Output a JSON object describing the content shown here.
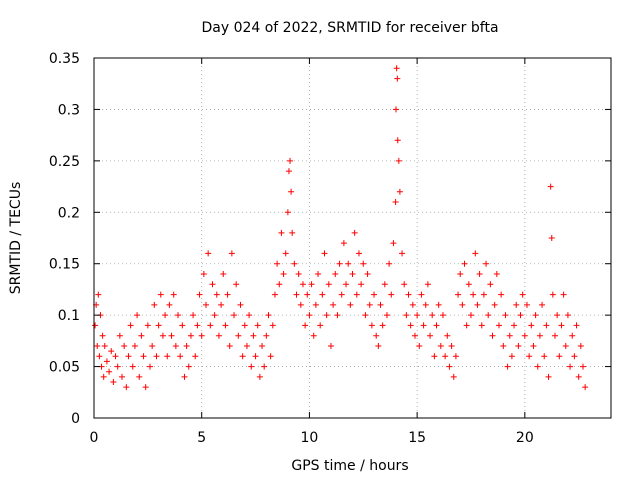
{
  "chart_data": {
    "type": "scatter",
    "title": "Day 024 of 2022, SRMTID for receiver bfta",
    "xlabel": "GPS time / hours",
    "ylabel": "SRMTID / TECUs",
    "xlim": [
      0,
      24
    ],
    "ylim": [
      0,
      0.35
    ],
    "x_ticks": [
      0,
      5,
      10,
      15,
      20
    ],
    "x_tick_labels": [
      "0",
      "5",
      "10",
      "15",
      "20"
    ],
    "y_ticks": [
      0,
      0.05,
      0.1,
      0.15,
      0.2,
      0.25,
      0.3,
      0.35
    ],
    "y_tick_labels": [
      "0",
      "0.05",
      "0.1",
      "0.15",
      "0.2",
      "0.25",
      "0.3",
      "0.35"
    ],
    "grid": true,
    "marker": "plus",
    "color": "#ff0000",
    "series": [
      {
        "name": "SRMTID",
        "points": [
          [
            0.05,
            0.09
          ],
          [
            0.1,
            0.11
          ],
          [
            0.15,
            0.07
          ],
          [
            0.2,
            0.12
          ],
          [
            0.25,
            0.06
          ],
          [
            0.3,
            0.1
          ],
          [
            0.35,
            0.05
          ],
          [
            0.4,
            0.08
          ],
          [
            0.45,
            0.04
          ],
          [
            0.5,
            0.07
          ],
          [
            0.6,
            0.055
          ],
          [
            0.7,
            0.045
          ],
          [
            0.8,
            0.065
          ],
          [
            0.9,
            0.035
          ],
          [
            1.0,
            0.06
          ],
          [
            1.1,
            0.05
          ],
          [
            1.2,
            0.08
          ],
          [
            1.3,
            0.04
          ],
          [
            1.4,
            0.07
          ],
          [
            1.5,
            0.03
          ],
          [
            1.6,
            0.06
          ],
          [
            1.7,
            0.09
          ],
          [
            1.8,
            0.05
          ],
          [
            1.9,
            0.07
          ],
          [
            2.0,
            0.1
          ],
          [
            2.1,
            0.04
          ],
          [
            2.2,
            0.08
          ],
          [
            2.3,
            0.06
          ],
          [
            2.4,
            0.03
          ],
          [
            2.5,
            0.09
          ],
          [
            2.6,
            0.05
          ],
          [
            2.7,
            0.07
          ],
          [
            2.8,
            0.11
          ],
          [
            2.9,
            0.06
          ],
          [
            3.0,
            0.09
          ],
          [
            3.1,
            0.12
          ],
          [
            3.2,
            0.08
          ],
          [
            3.3,
            0.1
          ],
          [
            3.4,
            0.06
          ],
          [
            3.5,
            0.11
          ],
          [
            3.6,
            0.08
          ],
          [
            3.7,
            0.12
          ],
          [
            3.8,
            0.07
          ],
          [
            3.9,
            0.1
          ],
          [
            4.0,
            0.06
          ],
          [
            4.1,
            0.09
          ],
          [
            4.2,
            0.04
          ],
          [
            4.3,
            0.07
          ],
          [
            4.4,
            0.05
          ],
          [
            4.5,
            0.08
          ],
          [
            4.6,
            0.1
          ],
          [
            4.7,
            0.06
          ],
          [
            4.8,
            0.09
          ],
          [
            4.9,
            0.12
          ],
          [
            5.0,
            0.08
          ],
          [
            5.1,
            0.14
          ],
          [
            5.2,
            0.11
          ],
          [
            5.3,
            0.16
          ],
          [
            5.4,
            0.09
          ],
          [
            5.5,
            0.13
          ],
          [
            5.6,
            0.1
          ],
          [
            5.7,
            0.12
          ],
          [
            5.8,
            0.08
          ],
          [
            5.9,
            0.11
          ],
          [
            6.0,
            0.14
          ],
          [
            6.1,
            0.09
          ],
          [
            6.2,
            0.12
          ],
          [
            6.3,
            0.07
          ],
          [
            6.4,
            0.16
          ],
          [
            6.5,
            0.1
          ],
          [
            6.6,
            0.13
          ],
          [
            6.7,
            0.08
          ],
          [
            6.8,
            0.11
          ],
          [
            6.9,
            0.06
          ],
          [
            7.0,
            0.09
          ],
          [
            7.1,
            0.07
          ],
          [
            7.2,
            0.1
          ],
          [
            7.3,
            0.05
          ],
          [
            7.4,
            0.08
          ],
          [
            7.5,
            0.06
          ],
          [
            7.6,
            0.09
          ],
          [
            7.7,
            0.04
          ],
          [
            7.8,
            0.07
          ],
          [
            7.9,
            0.05
          ],
          [
            8.0,
            0.08
          ],
          [
            8.1,
            0.1
          ],
          [
            8.2,
            0.06
          ],
          [
            8.3,
            0.09
          ],
          [
            8.4,
            0.12
          ],
          [
            8.5,
            0.15
          ],
          [
            8.6,
            0.13
          ],
          [
            8.7,
            0.18
          ],
          [
            8.8,
            0.14
          ],
          [
            8.9,
            0.16
          ],
          [
            9.0,
            0.2
          ],
          [
            9.05,
            0.24
          ],
          [
            9.1,
            0.25
          ],
          [
            9.15,
            0.22
          ],
          [
            9.2,
            0.18
          ],
          [
            9.3,
            0.15
          ],
          [
            9.4,
            0.12
          ],
          [
            9.5,
            0.14
          ],
          [
            9.6,
            0.11
          ],
          [
            9.7,
            0.13
          ],
          [
            9.8,
            0.09
          ],
          [
            9.9,
            0.12
          ],
          [
            10.0,
            0.1
          ],
          [
            10.1,
            0.13
          ],
          [
            10.2,
            0.08
          ],
          [
            10.3,
            0.11
          ],
          [
            10.4,
            0.14
          ],
          [
            10.5,
            0.09
          ],
          [
            10.6,
            0.12
          ],
          [
            10.7,
            0.16
          ],
          [
            10.8,
            0.1
          ],
          [
            10.9,
            0.13
          ],
          [
            11.0,
            0.07
          ],
          [
            11.1,
            0.11
          ],
          [
            11.2,
            0.14
          ],
          [
            11.3,
            0.1
          ],
          [
            11.4,
            0.15
          ],
          [
            11.5,
            0.12
          ],
          [
            11.6,
            0.17
          ],
          [
            11.7,
            0.13
          ],
          [
            11.8,
            0.15
          ],
          [
            11.9,
            0.11
          ],
          [
            12.0,
            0.14
          ],
          [
            12.1,
            0.18
          ],
          [
            12.2,
            0.12
          ],
          [
            12.3,
            0.16
          ],
          [
            12.4,
            0.13
          ],
          [
            12.5,
            0.15
          ],
          [
            12.6,
            0.1
          ],
          [
            12.7,
            0.14
          ],
          [
            12.8,
            0.11
          ],
          [
            12.9,
            0.09
          ],
          [
            13.0,
            0.12
          ],
          [
            13.1,
            0.08
          ],
          [
            13.2,
            0.07
          ],
          [
            13.3,
            0.11
          ],
          [
            13.4,
            0.09
          ],
          [
            13.5,
            0.13
          ],
          [
            13.6,
            0.1
          ],
          [
            13.7,
            0.15
          ],
          [
            13.8,
            0.12
          ],
          [
            13.9,
            0.17
          ],
          [
            14.0,
            0.21
          ],
          [
            14.02,
            0.3
          ],
          [
            14.05,
            0.34
          ],
          [
            14.08,
            0.33
          ],
          [
            14.1,
            0.27
          ],
          [
            14.15,
            0.25
          ],
          [
            14.2,
            0.22
          ],
          [
            14.3,
            0.16
          ],
          [
            14.4,
            0.13
          ],
          [
            14.5,
            0.1
          ],
          [
            14.6,
            0.12
          ],
          [
            14.7,
            0.09
          ],
          [
            14.8,
            0.11
          ],
          [
            14.9,
            0.08
          ],
          [
            15.0,
            0.1
          ],
          [
            15.1,
            0.07
          ],
          [
            15.2,
            0.12
          ],
          [
            15.3,
            0.09
          ],
          [
            15.4,
            0.11
          ],
          [
            15.5,
            0.13
          ],
          [
            15.6,
            0.08
          ],
          [
            15.7,
            0.1
          ],
          [
            15.8,
            0.06
          ],
          [
            15.9,
            0.09
          ],
          [
            16.0,
            0.11
          ],
          [
            16.1,
            0.07
          ],
          [
            16.2,
            0.1
          ],
          [
            16.3,
            0.06
          ],
          [
            16.4,
            0.08
          ],
          [
            16.5,
            0.05
          ],
          [
            16.6,
            0.07
          ],
          [
            16.7,
            0.04
          ],
          [
            16.8,
            0.06
          ],
          [
            16.9,
            0.12
          ],
          [
            17.0,
            0.14
          ],
          [
            17.1,
            0.11
          ],
          [
            17.2,
            0.15
          ],
          [
            17.3,
            0.09
          ],
          [
            17.4,
            0.13
          ],
          [
            17.5,
            0.1
          ],
          [
            17.6,
            0.12
          ],
          [
            17.7,
            0.16
          ],
          [
            17.8,
            0.11
          ],
          [
            17.9,
            0.14
          ],
          [
            18.0,
            0.09
          ],
          [
            18.1,
            0.12
          ],
          [
            18.2,
            0.15
          ],
          [
            18.3,
            0.1
          ],
          [
            18.4,
            0.13
          ],
          [
            18.5,
            0.08
          ],
          [
            18.6,
            0.11
          ],
          [
            18.7,
            0.14
          ],
          [
            18.8,
            0.09
          ],
          [
            18.9,
            0.12
          ],
          [
            19.0,
            0.07
          ],
          [
            19.1,
            0.1
          ],
          [
            19.2,
            0.05
          ],
          [
            19.3,
            0.08
          ],
          [
            19.4,
            0.06
          ],
          [
            19.5,
            0.09
          ],
          [
            19.6,
            0.11
          ],
          [
            19.7,
            0.07
          ],
          [
            19.8,
            0.1
          ],
          [
            19.9,
            0.12
          ],
          [
            20.0,
            0.08
          ],
          [
            20.1,
            0.11
          ],
          [
            20.2,
            0.06
          ],
          [
            20.3,
            0.09
          ],
          [
            20.4,
            0.07
          ],
          [
            20.5,
            0.1
          ],
          [
            20.6,
            0.05
          ],
          [
            20.7,
            0.08
          ],
          [
            20.8,
            0.11
          ],
          [
            20.9,
            0.06
          ],
          [
            21.0,
            0.09
          ],
          [
            21.1,
            0.04
          ],
          [
            21.2,
            0.225
          ],
          [
            21.25,
            0.175
          ],
          [
            21.3,
            0.12
          ],
          [
            21.4,
            0.08
          ],
          [
            21.5,
            0.1
          ],
          [
            21.6,
            0.06
          ],
          [
            21.7,
            0.09
          ],
          [
            21.8,
            0.12
          ],
          [
            21.9,
            0.07
          ],
          [
            22.0,
            0.1
          ],
          [
            22.1,
            0.05
          ],
          [
            22.2,
            0.08
          ],
          [
            22.3,
            0.06
          ],
          [
            22.4,
            0.09
          ],
          [
            22.5,
            0.04
          ],
          [
            22.6,
            0.07
          ],
          [
            22.7,
            0.05
          ],
          [
            22.8,
            0.03
          ]
        ]
      }
    ]
  }
}
